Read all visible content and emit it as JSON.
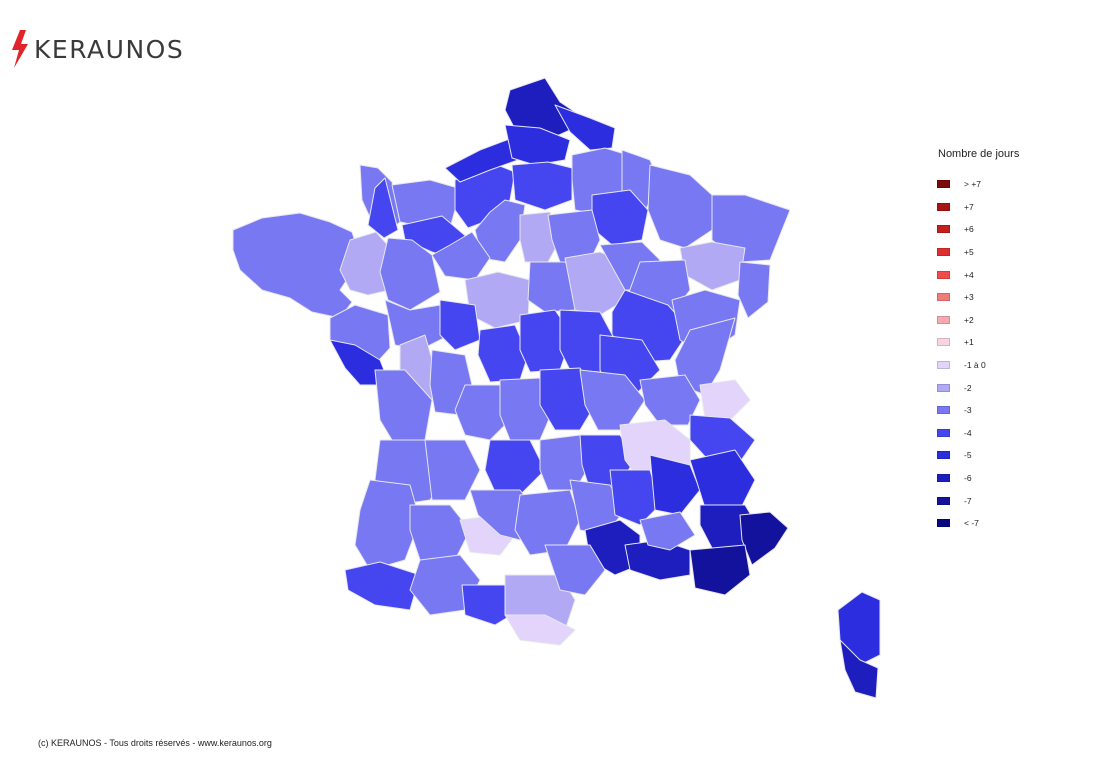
{
  "brand": {
    "name": "KERAUNOS",
    "bolt_color": "#e0242a"
  },
  "legend": {
    "title": "Nombre de jours",
    "items": [
      {
        "label": "> +7",
        "color": "#7b0a0a"
      },
      {
        "label": "+7",
        "color": "#a81414"
      },
      {
        "label": "+6",
        "color": "#c41e1e"
      },
      {
        "label": "+5",
        "color": "#de2e2e"
      },
      {
        "label": "+4",
        "color": "#f24b4b"
      },
      {
        "label": "+3",
        "color": "#f27c7c"
      },
      {
        "label": "+2",
        "color": "#f6aab0"
      },
      {
        "label": "+1",
        "color": "#f9d4e2"
      },
      {
        "label": "-1 à 0",
        "color": "#e2d4fa"
      },
      {
        "label": "-2",
        "color": "#b1a9f3"
      },
      {
        "label": "-3",
        "color": "#7878f3"
      },
      {
        "label": "-4",
        "color": "#4646f0"
      },
      {
        "label": "-5",
        "color": "#2d2de0"
      },
      {
        "label": "-6",
        "color": "#1e1ebe"
      },
      {
        "label": "-7",
        "color": "#12129c"
      },
      {
        "label": "< -7",
        "color": "#070780"
      }
    ]
  },
  "footer": {
    "copyright": "(c) KERAUNOS - Tous droits réservés - www.keraunos.org"
  }
}
